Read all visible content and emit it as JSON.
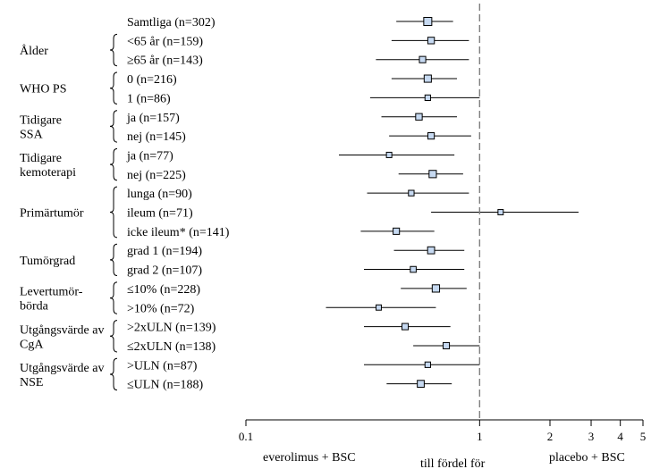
{
  "chart_data": {
    "type": "forest",
    "x_scale": "log",
    "xlim": [
      0.1,
      5
    ],
    "reference_line": 1,
    "x_ticks": [
      {
        "value": 0.1,
        "label": "0.1"
      },
      {
        "value": 1,
        "label": "1"
      },
      {
        "value": 2,
        "label": "2"
      },
      {
        "value": 3,
        "label": "3"
      },
      {
        "value": 4,
        "label": "4"
      },
      {
        "value": 5,
        "label": "5"
      }
    ],
    "bottom_labels": {
      "left": "everolimus + BSC",
      "center": "till fördel för",
      "right": "placebo + BSC"
    },
    "groups": [
      {
        "label": [
          "Ålder"
        ],
        "rows": [
          1,
          2
        ]
      },
      {
        "label": [
          "WHO PS"
        ],
        "rows": [
          3,
          4
        ]
      },
      {
        "label": [
          "Tidigare",
          "SSA"
        ],
        "rows": [
          5,
          6
        ]
      },
      {
        "label": [
          "Tidigare",
          "kemoterapi"
        ],
        "rows": [
          7,
          8
        ]
      },
      {
        "label": [
          "Primärtumör"
        ],
        "rows": [
          9,
          10,
          11
        ]
      },
      {
        "label": [
          "Tumörgrad"
        ],
        "rows": [
          12,
          13
        ]
      },
      {
        "label": [
          "Levertumör-",
          "börda"
        ],
        "rows": [
          14,
          15
        ]
      },
      {
        "label": [
          "Utgångsvärde av",
          "CgA"
        ],
        "rows": [
          16,
          17
        ]
      },
      {
        "label": [
          "Utgångsvärde av",
          "NSE"
        ],
        "rows": [
          18,
          19
        ]
      }
    ],
    "rows": [
      {
        "label": "Samtliga (n=302)",
        "estimate": 0.6,
        "lower": 0.44,
        "upper": 0.77,
        "n": 302
      },
      {
        "label": "<65 år (n=159)",
        "estimate": 0.62,
        "lower": 0.42,
        "upper": 0.9,
        "n": 159
      },
      {
        "label": "≥65 år (n=143)",
        "estimate": 0.57,
        "lower": 0.36,
        "upper": 0.9,
        "n": 143
      },
      {
        "label": "0 (n=216)",
        "estimate": 0.6,
        "lower": 0.42,
        "upper": 0.8,
        "n": 216
      },
      {
        "label": "1 (n=86)",
        "estimate": 0.6,
        "lower": 0.34,
        "upper": 1.0,
        "n": 86
      },
      {
        "label": "ja (n=157)",
        "estimate": 0.55,
        "lower": 0.38,
        "upper": 0.8,
        "n": 157
      },
      {
        "label": "nej (n=145)",
        "estimate": 0.62,
        "lower": 0.41,
        "upper": 0.92,
        "n": 145
      },
      {
        "label": "ja (n=77)",
        "estimate": 0.41,
        "lower": 0.25,
        "upper": 0.78,
        "n": 77
      },
      {
        "label": "nej (n=225)",
        "estimate": 0.63,
        "lower": 0.45,
        "upper": 0.85,
        "n": 225
      },
      {
        "label": "lunga (n=90)",
        "estimate": 0.51,
        "lower": 0.33,
        "upper": 0.9,
        "n": 90
      },
      {
        "label": "ileum (n=71)",
        "estimate": 1.23,
        "lower": 0.62,
        "upper": 2.65,
        "n": 71
      },
      {
        "label": "icke ileum* (n=141)",
        "estimate": 0.44,
        "lower": 0.31,
        "upper": 0.64,
        "n": 141
      },
      {
        "label": "grad 1 (n=194)",
        "estimate": 0.62,
        "lower": 0.43,
        "upper": 0.86,
        "n": 194
      },
      {
        "label": "grad 2 (n=107)",
        "estimate": 0.52,
        "lower": 0.32,
        "upper": 0.86,
        "n": 107
      },
      {
        "label": "≤10% (n=228)",
        "estimate": 0.65,
        "lower": 0.46,
        "upper": 0.88,
        "n": 228
      },
      {
        "label": ">10% (n=72)",
        "estimate": 0.37,
        "lower": 0.22,
        "upper": 0.65,
        "n": 72
      },
      {
        "label": ">2xULN (n=139)",
        "estimate": 0.48,
        "lower": 0.32,
        "upper": 0.75,
        "n": 139
      },
      {
        "label": "≤2xULN (n=138)",
        "estimate": 0.72,
        "lower": 0.52,
        "upper": 1.0,
        "n": 138
      },
      {
        "label": ">ULN (n=87)",
        "estimate": 0.6,
        "lower": 0.32,
        "upper": 1.0,
        "n": 87
      },
      {
        "label": "≤ULN (n=188)",
        "estimate": 0.56,
        "lower": 0.4,
        "upper": 0.76,
        "n": 188
      }
    ],
    "colors": {
      "box_fill": "#c6d9f1",
      "box_stroke": "#000000",
      "ref_line": "#7f7f7f",
      "ci_line": "#000000"
    }
  }
}
